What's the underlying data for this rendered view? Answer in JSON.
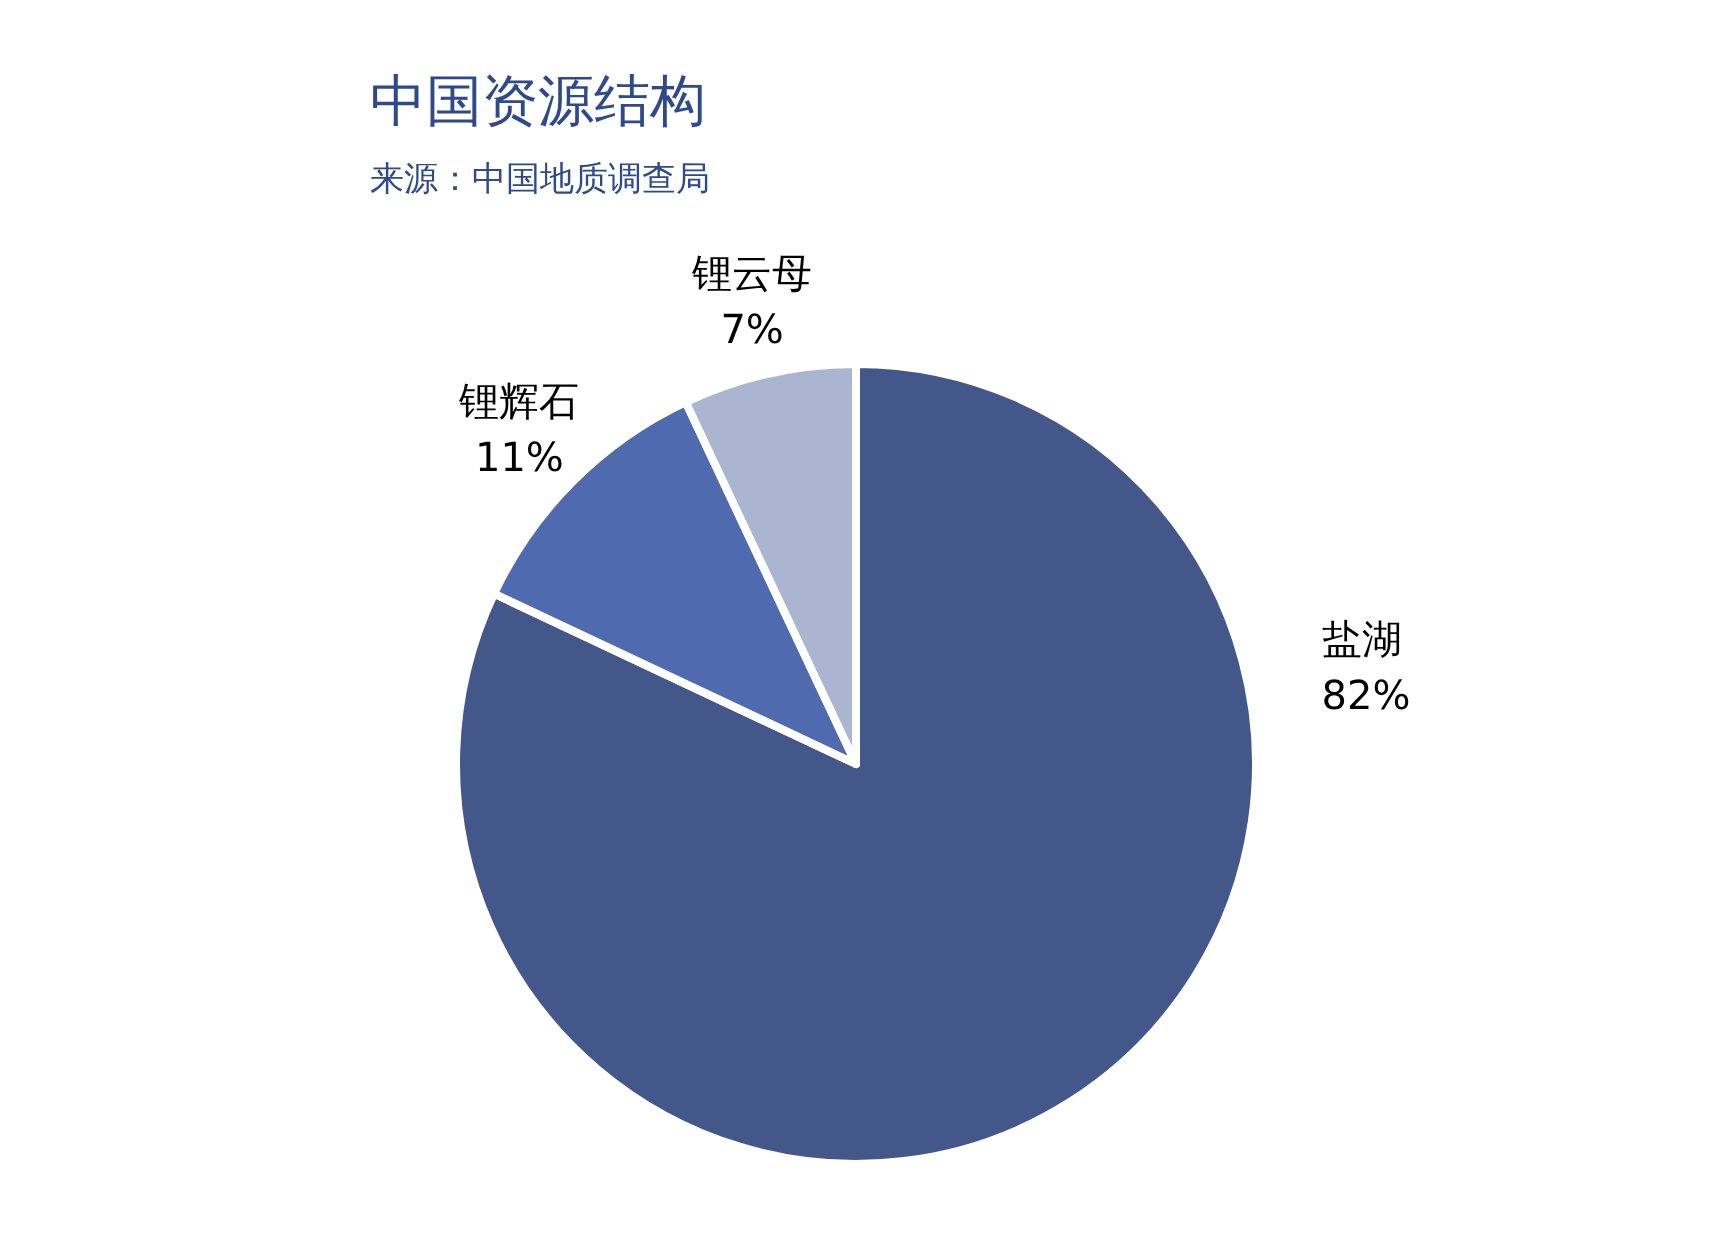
{
  "chart_data": {
    "type": "pie",
    "title": "中国资源结构",
    "annotations": [
      "来源：中国地质调查局"
    ],
    "categories": [
      "盐湖",
      "锂辉石",
      "锂云母"
    ],
    "values": [
      82,
      11,
      7
    ],
    "value_labels": [
      "82%",
      "11%",
      "7%"
    ],
    "colors": [
      "#44578a",
      "#4f6aae",
      "#a9b5d1"
    ],
    "legend": false
  }
}
